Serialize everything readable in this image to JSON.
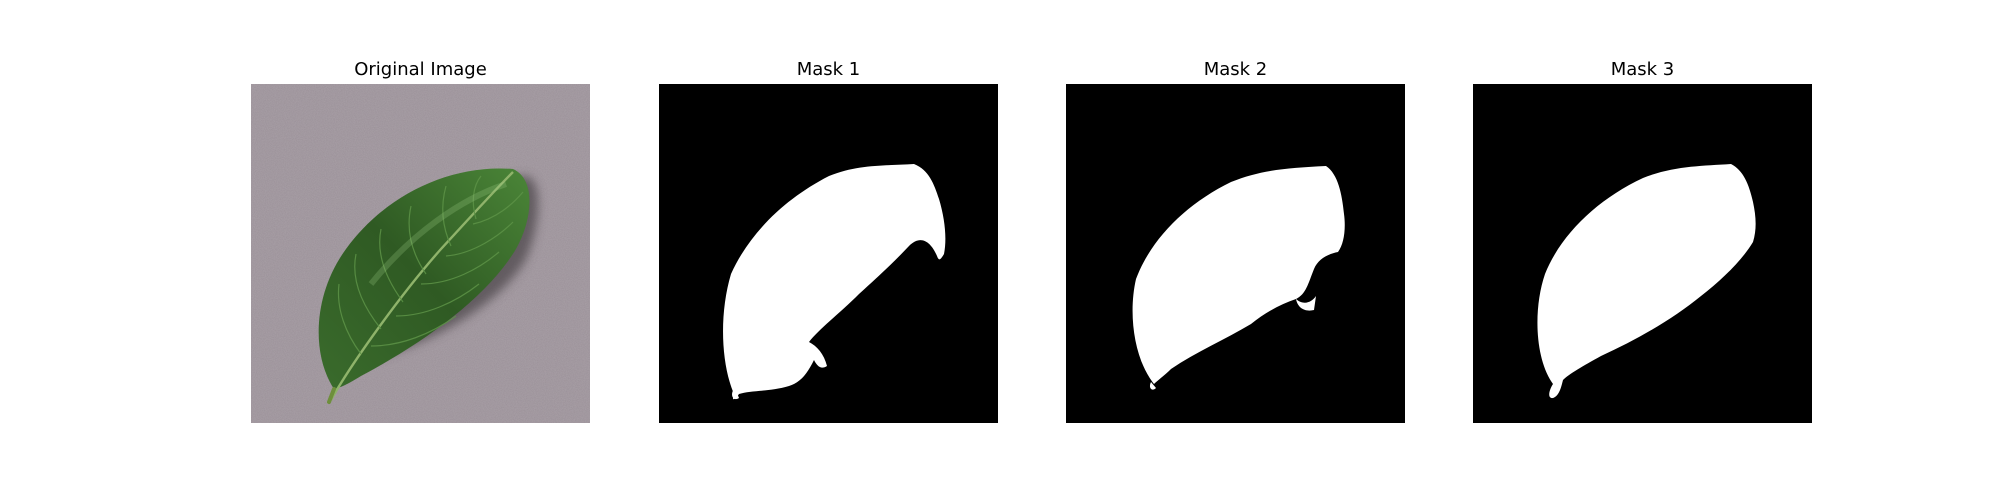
{
  "figure": {
    "panels": [
      {
        "id": "original",
        "title": "Original Image",
        "kind": "photo",
        "subject": "green-leaf-on-gray-granite"
      },
      {
        "id": "mask1",
        "title": "Mask 1",
        "kind": "binary-mask"
      },
      {
        "id": "mask2",
        "title": "Mask 2",
        "kind": "binary-mask"
      },
      {
        "id": "mask3",
        "title": "Mask 3",
        "kind": "binary-mask"
      }
    ],
    "colors": {
      "background": "#ffffff",
      "mask_background": "#000000",
      "mask_foreground": "#ffffff",
      "leaf_dark": "#2f5a23",
      "leaf_mid": "#3f7a31",
      "leaf_light": "#6fa85a",
      "surface": "#a89fa6",
      "shadow": "#5c5359"
    }
  }
}
